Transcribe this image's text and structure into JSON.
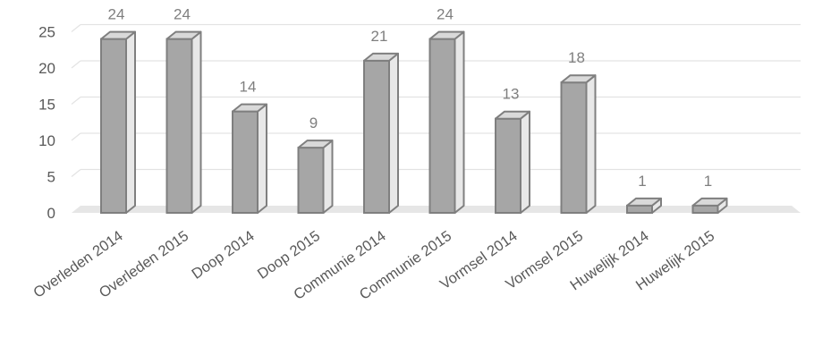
{
  "chart_data": {
    "type": "bar",
    "title": "",
    "xlabel": "",
    "ylabel": "",
    "ylim": [
      0,
      25
    ],
    "yticks": [
      0,
      5,
      10,
      15,
      20,
      25
    ],
    "grid": true,
    "style": "3d-clustered-column",
    "categories": [
      "Overleden 2014",
      "Overleden 2015",
      "Doop 2014",
      "Doop 2015",
      "Communie 2014",
      "Communie 2015",
      "Vormsel 2014",
      "Vormsel 2015",
      "Huwelijk 2014",
      "Huwelijk 2015"
    ],
    "values": [
      24,
      24,
      14,
      9,
      21,
      24,
      13,
      18,
      1,
      1
    ],
    "colors": {
      "bar_front": "#a6a6a6",
      "bar_top": "#d9d9d9",
      "bar_side": "#e8e8e8",
      "bar_edge": "#7f7f7f",
      "floor": "#e6e6e6",
      "grid": "#e3e3e3",
      "label": "#7f7f7f",
      "axis_text": "#595959"
    }
  }
}
